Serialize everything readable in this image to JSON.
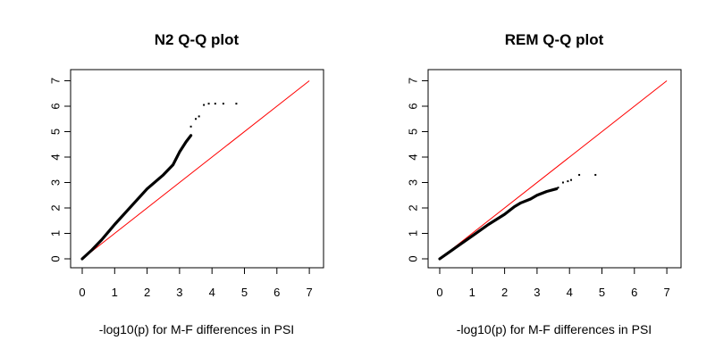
{
  "chart_data": [
    {
      "type": "scatter",
      "title": "N2 Q-Q plot",
      "xlabel": "-log10(p) for M-F differences in PSI",
      "ylabel": "",
      "xlim": [
        0,
        7
      ],
      "ylim": [
        0,
        7
      ],
      "xticks": [
        "0",
        "1",
        "2",
        "3",
        "4",
        "5",
        "6",
        "7"
      ],
      "yticks": [
        "0",
        "1",
        "2",
        "3",
        "4",
        "5",
        "6",
        "7"
      ],
      "reference_line": {
        "slope": 1,
        "intercept": 0,
        "color": "#ff0000"
      },
      "point_color": "#000000",
      "curve": [
        [
          0,
          0
        ],
        [
          0.3,
          0.35
        ],
        [
          0.6,
          0.75
        ],
        [
          1.0,
          1.35
        ],
        [
          1.5,
          2.05
        ],
        [
          2.0,
          2.75
        ],
        [
          2.5,
          3.3
        ],
        [
          2.8,
          3.7
        ],
        [
          3.0,
          4.2
        ],
        [
          3.2,
          4.6
        ],
        [
          3.35,
          4.85
        ]
      ],
      "points": [
        [
          3.35,
          5.2
        ],
        [
          3.5,
          5.5
        ],
        [
          3.6,
          5.6
        ],
        [
          3.75,
          6.05
        ],
        [
          3.9,
          6.1
        ],
        [
          4.1,
          6.1
        ],
        [
          4.35,
          6.1
        ],
        [
          4.75,
          6.1
        ]
      ]
    },
    {
      "type": "scatter",
      "title": "REM Q-Q plot",
      "xlabel": "-log10(p) for M-F differences in PSI",
      "ylabel": "",
      "xlim": [
        0,
        7
      ],
      "ylim": [
        0,
        7
      ],
      "xticks": [
        "0",
        "1",
        "2",
        "3",
        "4",
        "5",
        "6",
        "7"
      ],
      "yticks": [
        "0",
        "1",
        "2",
        "3",
        "4",
        "5",
        "6",
        "7"
      ],
      "reference_line": {
        "slope": 1,
        "intercept": 0,
        "color": "#ff0000"
      },
      "point_color": "#000000",
      "curve": [
        [
          0,
          0
        ],
        [
          0.5,
          0.45
        ],
        [
          1.0,
          0.9
        ],
        [
          1.5,
          1.35
        ],
        [
          2.0,
          1.75
        ],
        [
          2.3,
          2.05
        ],
        [
          2.5,
          2.2
        ],
        [
          2.8,
          2.35
        ],
        [
          3.0,
          2.5
        ],
        [
          3.3,
          2.65
        ],
        [
          3.6,
          2.75
        ]
      ],
      "points": [
        [
          3.65,
          2.8
        ],
        [
          3.8,
          3.0
        ],
        [
          3.95,
          3.05
        ],
        [
          4.05,
          3.1
        ],
        [
          4.3,
          3.3
        ],
        [
          4.8,
          3.3
        ]
      ]
    }
  ]
}
